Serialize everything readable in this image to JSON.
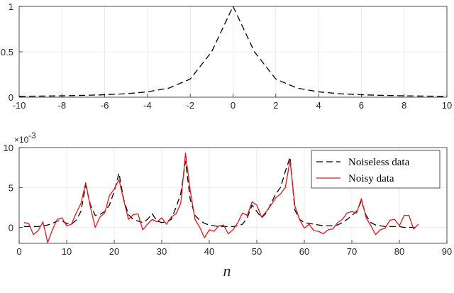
{
  "chart_data": [
    {
      "type": "line",
      "title": "",
      "xlabel": "",
      "ylabel": "",
      "xlim": [
        -10,
        10
      ],
      "ylim": [
        0,
        1
      ],
      "xticks": [
        "-10",
        "-8",
        "-6",
        "-4",
        "-2",
        "0",
        "2",
        "4",
        "6",
        "8",
        "10"
      ],
      "yticks": [
        "0",
        "0.5",
        "1"
      ],
      "grid": true,
      "series": [
        {
          "style": "dashed",
          "color": "#000000",
          "x": [
            -10,
            -9,
            -8,
            -7,
            -6,
            -5,
            -4,
            -3,
            -2,
            -1,
            0,
            1,
            2,
            3,
            4,
            5,
            6,
            7,
            8,
            9,
            10
          ],
          "y": [
            0.01,
            0.012,
            0.015,
            0.02,
            0.027,
            0.038,
            0.059,
            0.1,
            0.2,
            0.5,
            1.0,
            0.5,
            0.2,
            0.1,
            0.059,
            0.038,
            0.027,
            0.02,
            0.015,
            0.012,
            0.01
          ]
        }
      ]
    },
    {
      "type": "line",
      "title": "",
      "xlabel": "n",
      "ylabel": "",
      "y_multiplier": "×10",
      "y_multiplier_exponent": "-3",
      "xlim": [
        0,
        90
      ],
      "ylim": [
        -2,
        10
      ],
      "xticks": [
        "0",
        "10",
        "20",
        "30",
        "40",
        "50",
        "60",
        "70",
        "80",
        "90"
      ],
      "yticks": [
        "0",
        "5",
        "10"
      ],
      "grid": true,
      "legend_position": "top-right",
      "series": [
        {
          "name": "Noiseless data",
          "style": "dashed",
          "color": "#000000",
          "x": [
            1,
            2,
            3,
            4,
            5,
            6,
            7,
            8,
            9,
            10,
            11,
            12,
            13,
            14,
            15,
            16,
            17,
            18,
            19,
            20,
            21,
            22,
            23,
            24,
            25,
            26,
            27,
            28,
            29,
            30,
            31,
            32,
            33,
            34,
            35,
            36,
            37,
            38,
            39,
            40,
            41,
            42,
            43,
            44,
            45,
            46,
            47,
            48,
            49,
            50,
            51,
            52,
            53,
            54,
            55,
            56,
            57,
            58,
            59,
            60,
            61,
            62,
            63,
            64,
            65,
            66,
            67,
            68,
            69,
            70,
            71,
            72,
            73,
            74,
            75,
            76,
            77,
            78,
            79,
            80,
            81,
            82,
            83,
            84
          ],
          "y": [
            0.1,
            0.1,
            0.1,
            0.1,
            0.2,
            0.3,
            0.5,
            0.8,
            0.8,
            0.5,
            0.4,
            0.9,
            2.0,
            5.3,
            2.8,
            1.5,
            1.6,
            2.0,
            2.8,
            4.5,
            6.8,
            3.5,
            1.6,
            1.0,
            0.8,
            0.6,
            1.0,
            1.7,
            0.8,
            0.6,
            0.7,
            1.0,
            2.5,
            4.2,
            8.3,
            3.5,
            1.5,
            0.9,
            0.5,
            0.3,
            0.2,
            0.1,
            0.1,
            0.1,
            0.1,
            0.2,
            0.4,
            1.2,
            2.8,
            2.0,
            1.2,
            1.8,
            3.0,
            4.2,
            5.0,
            7.0,
            8.8,
            2.2,
            1.0,
            0.6,
            0.5,
            0.4,
            0.3,
            0.2,
            0.2,
            0.2,
            0.3,
            0.6,
            1.0,
            1.5,
            2.0,
            3.3,
            1.5,
            0.6,
            0.3,
            0.2,
            0.1,
            0.1,
            0.1,
            0.1,
            0.0,
            0.0,
            0.0,
            0.0
          ]
        },
        {
          "name": "Noisy data",
          "style": "solid",
          "color": "#e8141c",
          "x": [
            1,
            2,
            3,
            4,
            5,
            6,
            7,
            8,
            9,
            10,
            11,
            12,
            13,
            14,
            15,
            16,
            17,
            18,
            19,
            20,
            21,
            22,
            23,
            24,
            25,
            26,
            27,
            28,
            29,
            30,
            31,
            32,
            33,
            34,
            35,
            36,
            37,
            38,
            39,
            40,
            41,
            42,
            43,
            44,
            45,
            46,
            47,
            48,
            49,
            50,
            51,
            52,
            53,
            54,
            55,
            56,
            57,
            58,
            59,
            60,
            61,
            62,
            63,
            64,
            65,
            66,
            67,
            68,
            69,
            70,
            71,
            72,
            73,
            74,
            75,
            76,
            77,
            78,
            79,
            80,
            81,
            82,
            83,
            84
          ],
          "y": [
            0.6,
            0.5,
            -0.9,
            -0.4,
            0.7,
            -1.9,
            -0.3,
            1.0,
            1.2,
            0.2,
            0.4,
            1.8,
            3.0,
            5.6,
            2.5,
            0.0,
            1.3,
            1.8,
            4.0,
            4.8,
            6.0,
            3.4,
            1.0,
            1.6,
            1.7,
            -0.3,
            0.4,
            1.0,
            0.7,
            1.2,
            0.4,
            1.3,
            1.7,
            3.0,
            9.3,
            4.6,
            1.0,
            0.0,
            -1.3,
            -0.3,
            -0.5,
            0.2,
            0.3,
            -0.8,
            -0.3,
            0.6,
            1.8,
            1.5,
            3.2,
            2.8,
            1.3,
            2.0,
            2.8,
            3.7,
            4.2,
            5.0,
            8.4,
            2.7,
            1.0,
            -0.1,
            0.4,
            -0.4,
            -0.5,
            -0.8,
            -0.3,
            -0.2,
            0.6,
            1.0,
            1.8,
            2.0,
            1.8,
            3.6,
            1.2,
            0.2,
            -0.9,
            -0.3,
            -0.1,
            0.9,
            1.0,
            0.2,
            1.5,
            1.5,
            -0.2,
            0.4
          ]
        }
      ]
    }
  ]
}
